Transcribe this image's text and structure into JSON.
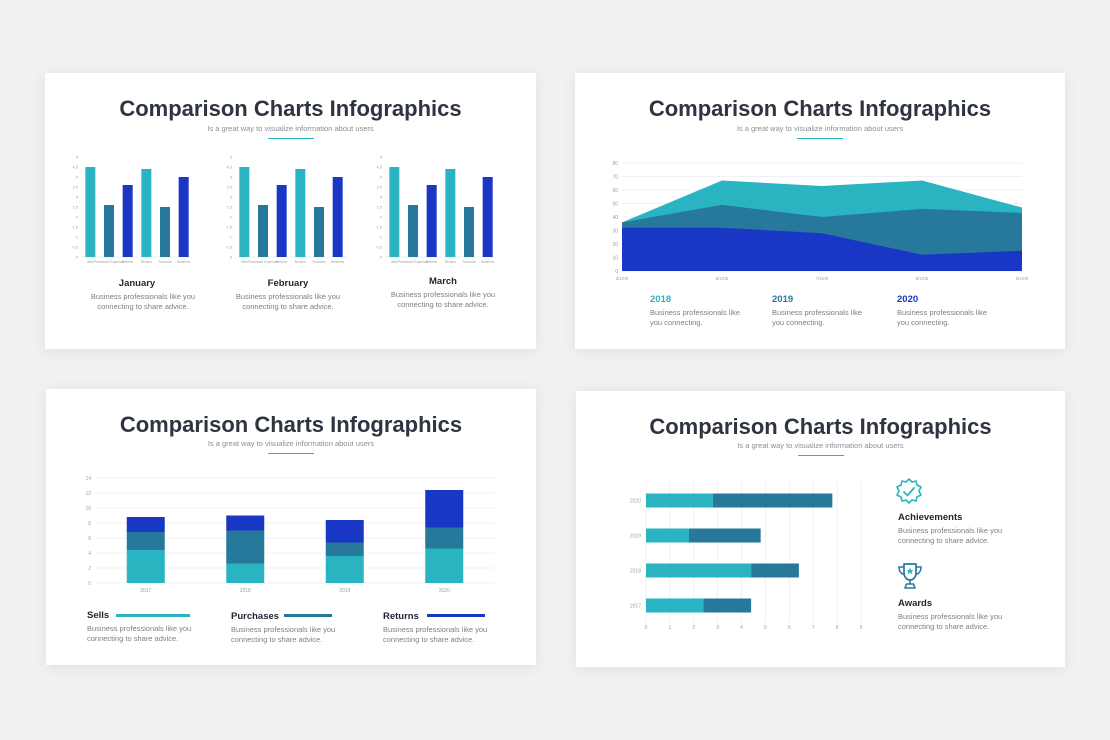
{
  "colors": {
    "teal": "#2ab3c0",
    "steel": "#26799a",
    "blue": "#1a36c4",
    "grid": "#e9ecef",
    "axis": "#9aa0a6"
  },
  "slides": [
    {
      "title": "Comparison Charts Infographics",
      "subtitle": "Is a great way to visualize information about users",
      "items": [
        {
          "label": "January",
          "desc_1": "Business professionals like you",
          "desc_2": "connecting to share advice."
        },
        {
          "label": "February",
          "desc_1": "Business professionals like you",
          "desc_2": "connecting to share advice."
        },
        {
          "label": "March",
          "desc_1": "Business professionals like you",
          "desc_2": "connecting to share advice."
        }
      ]
    },
    {
      "title": "Comparison Charts Infographics",
      "subtitle": "Is a great way to visualize information about users",
      "items": [
        {
          "label": "2018",
          "desc_1": "Business professionals like",
          "desc_2": "you connecting."
        },
        {
          "label": "2019",
          "desc_1": "Business professionals like",
          "desc_2": "you connecting."
        },
        {
          "label": "2020",
          "desc_1": "Business professionals like",
          "desc_2": "you connecting."
        }
      ]
    },
    {
      "title": "Comparison Charts Infographics",
      "subtitle": "Is a great way to visualize information about users",
      "items": [
        {
          "label": "Sells",
          "desc_1": "Business professionals like you",
          "desc_2": "connecting to share advice."
        },
        {
          "label": "Purchases",
          "desc_1": "Business professionals like you",
          "desc_2": "connecting to share advice."
        },
        {
          "label": "Returns",
          "desc_1": "Business professionals like you",
          "desc_2": "connecting to share advice."
        }
      ]
    },
    {
      "title": "Comparison Charts Infographics",
      "subtitle": "Is a great way to visualize information about users",
      "items": [
        {
          "label": "Achievements",
          "icon": "medal-icon",
          "desc_1": "Business professionals like you",
          "desc_2": "connecting to share advice."
        },
        {
          "label": "Awards",
          "icon": "trophy-icon",
          "desc_1": "Business professionals like you",
          "desc_2": "connecting to share advice."
        }
      ]
    }
  ],
  "chart_data": [
    {
      "type": "bar",
      "categories": [
        "Web",
        "Purchased Expenses",
        "Returns",
        "Returns",
        "Financial",
        "Business"
      ],
      "series": [
        {
          "values": [
            4.5,
            2.6,
            3.6,
            4.4,
            2.5,
            4.0
          ]
        }
      ],
      "ylim": [
        0,
        5
      ],
      "yticks": [
        "0",
        "0.5",
        "1",
        "1.5",
        "2",
        "2.5",
        "3",
        "3.5",
        "4",
        "4.5",
        "5"
      ]
    },
    {
      "type": "bar",
      "categories": [
        "Web",
        "Purchased Expenses",
        "Returns",
        "Returns",
        "Financial",
        "Business"
      ],
      "series": [
        {
          "values": [
            4.5,
            2.6,
            3.6,
            4.4,
            2.5,
            4.0
          ]
        }
      ],
      "ylim": [
        0,
        5
      ],
      "yticks": [
        "0",
        "0.5",
        "1",
        "1.5",
        "2",
        "2.5",
        "3",
        "3.5",
        "4",
        "4.5",
        "5"
      ]
    },
    {
      "type": "bar",
      "categories": [
        "Web",
        "Purchased Expenses",
        "Returns",
        "Returns",
        "Financial",
        "Business"
      ],
      "series": [
        {
          "values": [
            4.5,
            2.6,
            3.6,
            4.4,
            2.5,
            4.0
          ]
        }
      ],
      "ylim": [
        0,
        5
      ],
      "yticks": [
        "0",
        "0.5",
        "1",
        "1.5",
        "2",
        "2.5",
        "3",
        "3.5",
        "4",
        "4.5",
        "5"
      ]
    },
    {
      "type": "area",
      "x": [
        "3/1/00",
        "6/1/00",
        "7/1/00",
        "8/1/00",
        "9/1/00"
      ],
      "series": [
        {
          "name": "2020",
          "values": [
            32,
            32,
            28,
            12,
            15
          ]
        },
        {
          "name": "2019",
          "values": [
            36,
            49,
            40,
            46,
            43
          ]
        },
        {
          "name": "2018",
          "values": [
            36,
            67,
            63,
            67,
            47
          ]
        }
      ],
      "ylim": [
        0,
        80
      ],
      "yticks": [
        "0",
        "10",
        "20",
        "30",
        "40",
        "50",
        "60",
        "70",
        "80"
      ]
    },
    {
      "type": "bar",
      "stacked": true,
      "categories": [
        "2017",
        "2018",
        "2019",
        "2020"
      ],
      "series": [
        {
          "name": "Sells",
          "values": [
            4.4,
            2.6,
            3.6,
            4.6
          ]
        },
        {
          "name": "Purchases",
          "values": [
            2.4,
            4.4,
            1.8,
            2.8
          ]
        },
        {
          "name": "Returns",
          "values": [
            2.0,
            2.0,
            3.0,
            5.0
          ]
        }
      ],
      "ylim": [
        0,
        14
      ],
      "yticks": [
        "0",
        "2",
        "4",
        "6",
        "8",
        "10",
        "12",
        "14"
      ]
    },
    {
      "type": "bar",
      "orientation": "horizontal",
      "stacked": true,
      "categories": [
        "2020",
        "2019",
        "2018",
        "2017"
      ],
      "series": [
        {
          "values": [
            2.8,
            1.8,
            4.4,
            2.4
          ]
        },
        {
          "values": [
            5.0,
            3.0,
            2.0,
            2.0
          ]
        }
      ],
      "xlim": [
        0,
        9
      ],
      "xticks": [
        "0",
        "1",
        "2",
        "3",
        "4",
        "5",
        "6",
        "7",
        "8",
        "9"
      ]
    }
  ]
}
